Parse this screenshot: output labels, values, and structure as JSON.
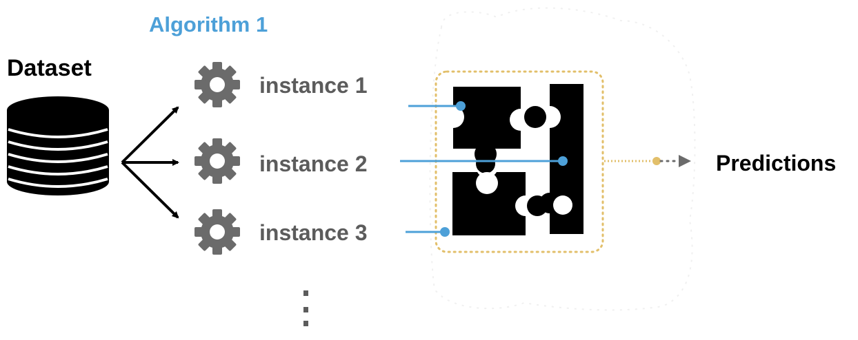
{
  "diagram": {
    "algorithm_title": "Algorithm 1",
    "dataset_label": "Dataset",
    "instances": [
      "instance 1",
      "instance 2",
      "instance 3"
    ],
    "continuation": "⋮",
    "output_label": "Predictions"
  },
  "colors": {
    "accent_blue": "#4da0d8",
    "gear_gray": "#6b6b6b",
    "instance_text": "#5c5c5c",
    "ensemble_border": "#e2bf6a",
    "puzzle": "#000000"
  },
  "icons": {
    "dataset": "database-icon",
    "model": "gear-icon",
    "combiner": "puzzle-icon",
    "output": "arrow-right-icon"
  }
}
